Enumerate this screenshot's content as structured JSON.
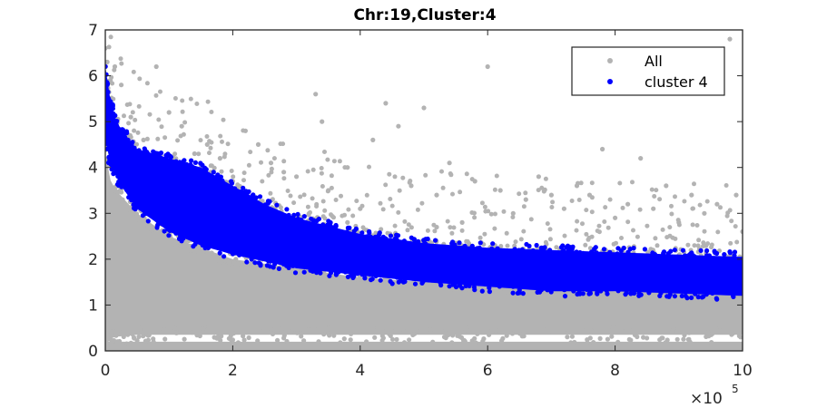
{
  "chart_data": {
    "type": "scatter",
    "title": "Chr:19,Cluster:4",
    "xlabel": "",
    "ylabel": "",
    "x_multiplier_label": "×10",
    "x_multiplier_exponent": "5",
    "xlim": [
      0,
      1000000
    ],
    "ylim": [
      0,
      7
    ],
    "x_ticks": [
      0,
      200000,
      400000,
      600000,
      800000,
      1000000
    ],
    "x_tick_labels": [
      "0",
      "2",
      "4",
      "6",
      "8",
      "10"
    ],
    "y_ticks": [
      0,
      1,
      2,
      3,
      4,
      5,
      6,
      7
    ],
    "y_tick_labels": [
      "0",
      "1",
      "2",
      "3",
      "4",
      "5",
      "6",
      "7"
    ],
    "grid": false,
    "legend_position": "top-right",
    "series": [
      {
        "name": "All",
        "color": "#b3b3b3",
        "marker": "filled-circle",
        "points": [
          [
            0,
            6.6
          ],
          [
            3000,
            6.3
          ],
          [
            8000,
            5.9
          ],
          [
            15000,
            6.2
          ],
          [
            25000,
            5.8
          ],
          [
            40000,
            5.1
          ],
          [
            60000,
            4.6
          ],
          [
            80000,
            6.2
          ],
          [
            100000,
            5.2
          ],
          [
            120000,
            4.9
          ],
          [
            140000,
            4.3
          ],
          [
            160000,
            4.5
          ],
          [
            180000,
            4.2
          ],
          [
            200000,
            3.7
          ],
          [
            220000,
            4.8
          ],
          [
            240000,
            4.5
          ],
          [
            260000,
            4.1
          ],
          [
            280000,
            3.9
          ],
          [
            300000,
            3.8
          ],
          [
            330000,
            5.6
          ],
          [
            340000,
            5.0
          ],
          [
            350000,
            3.5
          ],
          [
            380000,
            4.0
          ],
          [
            400000,
            3.1
          ],
          [
            420000,
            4.6
          ],
          [
            440000,
            5.4
          ],
          [
            460000,
            4.9
          ],
          [
            480000,
            3.6
          ],
          [
            500000,
            5.3
          ],
          [
            520000,
            3.4
          ],
          [
            540000,
            4.1
          ],
          [
            560000,
            2.8
          ],
          [
            580000,
            3.7
          ],
          [
            600000,
            6.2
          ],
          [
            620000,
            3.5
          ],
          [
            640000,
            3.0
          ],
          [
            660000,
            3.3
          ],
          [
            680000,
            3.8
          ],
          [
            700000,
            3.4
          ],
          [
            720000,
            3.1
          ],
          [
            740000,
            3.6
          ],
          [
            760000,
            3.4
          ],
          [
            780000,
            4.4
          ],
          [
            800000,
            2.9
          ],
          [
            820000,
            3.2
          ],
          [
            840000,
            4.2
          ],
          [
            860000,
            3.1
          ],
          [
            880000,
            3.6
          ],
          [
            900000,
            2.8
          ],
          [
            920000,
            3.4
          ],
          [
            940000,
            3.0
          ],
          [
            960000,
            3.2
          ],
          [
            980000,
            6.8
          ],
          [
            990000,
            3.4
          ],
          [
            1000000,
            2.6
          ],
          [
            50000,
            3.5
          ],
          [
            120000,
            3.2
          ],
          [
            250000,
            3.0
          ],
          [
            380000,
            2.8
          ],
          [
            520000,
            2.7
          ]
        ]
      },
      {
        "name": "cluster 4",
        "color": "#0000ff",
        "marker": "filled-circle",
        "band": {
          "x": [
            0,
            5000,
            20000,
            50000,
            100000,
            150000,
            200000,
            250000,
            300000,
            400000,
            500000,
            600000,
            700000,
            800000,
            900000,
            1000000
          ],
          "lower": [
            4.6,
            4.2,
            3.7,
            3.1,
            2.6,
            2.3,
            2.1,
            1.95,
            1.8,
            1.65,
            1.5,
            1.4,
            1.3,
            1.3,
            1.25,
            1.2
          ],
          "upper": [
            6.2,
            5.6,
            4.9,
            4.4,
            4.2,
            4.0,
            3.6,
            3.2,
            2.9,
            2.55,
            2.35,
            2.25,
            2.2,
            2.15,
            2.1,
            2.05
          ]
        }
      }
    ],
    "background_band": {
      "name": "All",
      "x": [
        0,
        10000,
        50000,
        100000,
        200000,
        400000,
        600000,
        800000,
        1000000
      ],
      "lower": [
        0.1,
        0.3,
        0.35,
        0.35,
        0.35,
        0.35,
        0.35,
        0.35,
        0.35
      ],
      "upper": [
        4.3,
        3.6,
        3.0,
        2.5,
        2.0,
        1.6,
        1.4,
        1.3,
        1.25
      ],
      "floor_line": [
        0.0,
        0.2
      ]
    }
  }
}
